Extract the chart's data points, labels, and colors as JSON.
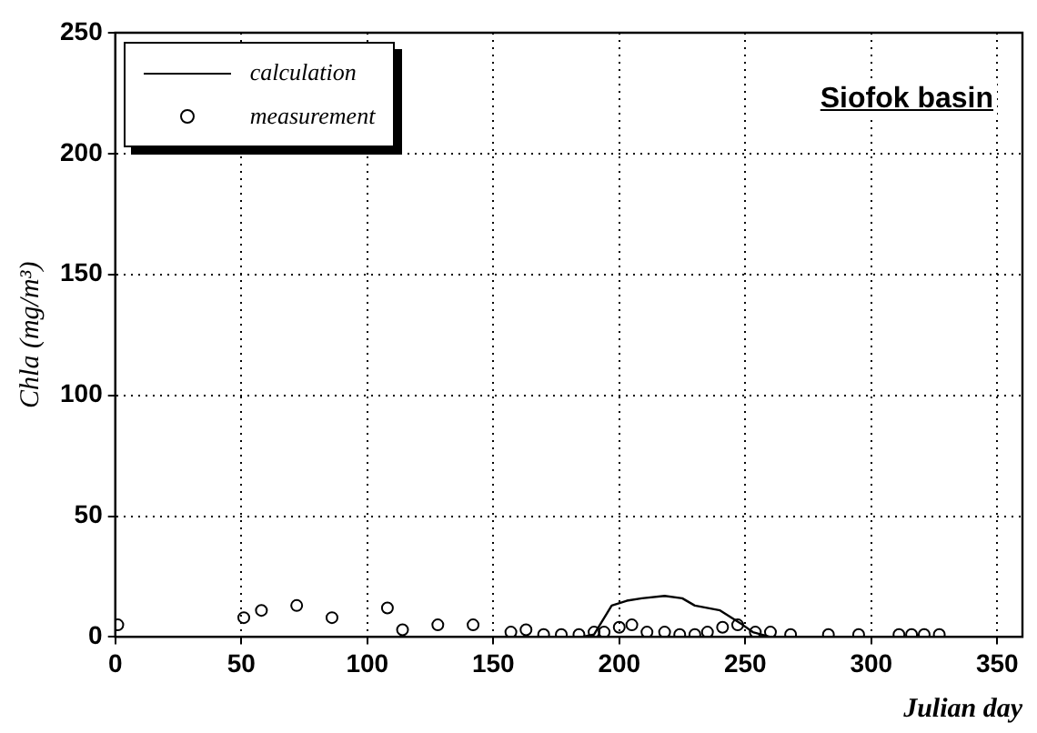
{
  "chart_data": {
    "type": "scatter",
    "title": "Siofok basin",
    "xlabel": "Julian day",
    "ylabel": "Chla (mg/m³)",
    "xlim": [
      0,
      360
    ],
    "xticks": [
      0,
      50,
      100,
      150,
      200,
      250,
      300,
      350
    ],
    "ylim": [
      0,
      250
    ],
    "yticks": [
      0,
      50,
      100,
      150,
      200,
      250
    ],
    "grid": true,
    "legend": "top left",
    "series": [
      {
        "name": "calculation",
        "type": "line",
        "color": "#000000",
        "marker": "none",
        "x": [
          0,
          100,
          185,
          190,
          197,
          203,
          209,
          218,
          225,
          230,
          240,
          249,
          253,
          260,
          300,
          360
        ],
        "values": [
          0,
          0,
          0,
          1,
          13,
          15,
          16,
          17,
          16,
          13,
          11,
          5,
          2,
          0,
          0,
          0
        ]
      },
      {
        "name": "measurement",
        "color": "#000000",
        "marker": "circle",
        "x": [
          1,
          51,
          58,
          72,
          86,
          108,
          114,
          128,
          142,
          157,
          163,
          170,
          177,
          184,
          190,
          194,
          200,
          205,
          211,
          218,
          224,
          230,
          235,
          241,
          247,
          254,
          260,
          268,
          283,
          295,
          311,
          316,
          321,
          327
        ],
        "values": [
          5,
          8,
          11,
          13,
          8,
          12,
          3,
          5,
          5,
          2,
          3,
          1,
          1,
          1,
          2,
          2,
          4,
          5,
          2,
          2,
          1,
          1,
          2,
          4,
          5,
          2,
          2,
          1,
          1,
          1,
          1,
          1,
          1,
          1
        ]
      }
    ]
  }
}
